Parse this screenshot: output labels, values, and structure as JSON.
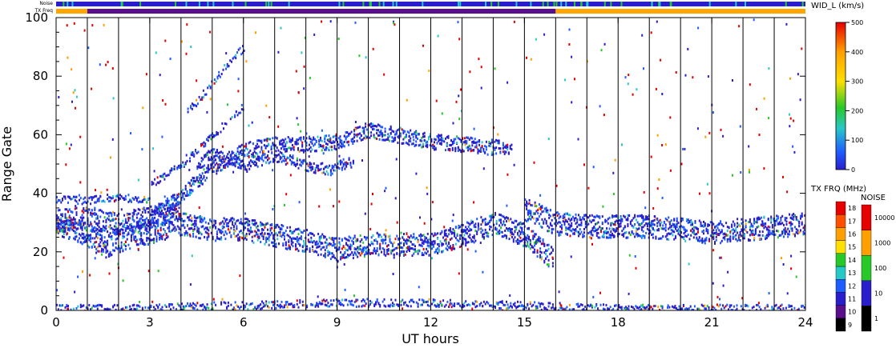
{
  "chart_data": {
    "type": "heatmap",
    "xlabel": "UT hours",
    "ylabel": "Range Gate",
    "xlim": [
      0,
      24
    ],
    "ylim": [
      0,
      100
    ],
    "x_ticks": [
      "0",
      "3",
      "6",
      "9",
      "12",
      "15",
      "18",
      "21",
      "24"
    ],
    "y_ticks": [
      "0",
      "20",
      "40",
      "60",
      "80",
      "100"
    ],
    "scan_boundaries_ut": [
      0.0,
      1.0,
      2.0,
      3.0,
      4.0,
      5.0,
      6.0,
      7.0,
      8.0,
      9.0,
      10.0,
      11.0,
      12.0,
      13.0,
      14.0,
      15.0,
      16.0,
      17.0,
      18.0,
      19.0,
      20.0,
      21.0,
      22.0,
      23.0
    ],
    "top_bars": {
      "noise_label": "Noise",
      "txfreq_label": "TX Freq",
      "txfreq_segments": [
        {
          "start": 0,
          "end": 1,
          "color": "#ffa500"
        },
        {
          "start": 1,
          "end": 16,
          "color": "#5a0f8c"
        },
        {
          "start": 16,
          "end": 24,
          "color": "#ffa500"
        }
      ]
    },
    "bands": [
      {
        "name": "",
        "points": [
          [
            0,
            30
          ],
          [
            1,
            26
          ],
          [
            1.5,
            22
          ],
          [
            2.5,
            26
          ],
          [
            3,
            27
          ],
          [
            4,
            30
          ],
          [
            5,
            28
          ],
          [
            6,
            28
          ],
          [
            7,
            26
          ],
          [
            8,
            24
          ],
          [
            9,
            21
          ],
          [
            10,
            23
          ],
          [
            11,
            23
          ],
          [
            12,
            23
          ],
          [
            13,
            26
          ],
          [
            14,
            30
          ],
          [
            15,
            26
          ],
          [
            15.9,
            18
          ]
        ],
        "width": 6
      },
      {
        "name": "",
        "points": [
          [
            0,
            31
          ],
          [
            1,
            32
          ],
          [
            2,
            30
          ],
          [
            3,
            32
          ],
          [
            4,
            35
          ]
        ],
        "width": 6
      },
      {
        "name": "",
        "points": [
          [
            15,
            35
          ],
          [
            16,
            30
          ],
          [
            17,
            29
          ],
          [
            18,
            29
          ],
          [
            19,
            29
          ],
          [
            20,
            28
          ],
          [
            21,
            27
          ],
          [
            22,
            28
          ],
          [
            23,
            29
          ],
          [
            24,
            30
          ]
        ],
        "width": 6
      },
      {
        "name": "",
        "points": [
          [
            0,
            38
          ],
          [
            1,
            38
          ],
          [
            2,
            39
          ],
          [
            3,
            38
          ]
        ],
        "width": 2
      },
      {
        "name": "",
        "points": [
          [
            3,
            32
          ],
          [
            4,
            40
          ],
          [
            5,
            49
          ],
          [
            6,
            55
          ],
          [
            7,
            57
          ],
          [
            8,
            57
          ],
          [
            9,
            58
          ],
          [
            10,
            62
          ],
          [
            11,
            60
          ],
          [
            12,
            58
          ],
          [
            13,
            57
          ],
          [
            14,
            56
          ],
          [
            14.6,
            56
          ]
        ],
        "width": 4
      },
      {
        "name": "",
        "points": [
          [
            4.5,
            50
          ],
          [
            5,
            54
          ],
          [
            6,
            50
          ],
          [
            7,
            53
          ],
          [
            8,
            50
          ],
          [
            8.8,
            48
          ],
          [
            9.5,
            52
          ]
        ],
        "width": 3
      },
      {
        "name": "",
        "points": [
          [
            3,
            43
          ],
          [
            4,
            50
          ],
          [
            5,
            60
          ],
          [
            6,
            70
          ]
        ],
        "width": 2
      },
      {
        "name": "",
        "points": [
          [
            4.2,
            68
          ],
          [
            5,
            78
          ],
          [
            5.6,
            86
          ],
          [
            6,
            90
          ]
        ],
        "width": 2
      },
      {
        "name": "",
        "points": [
          [
            0,
            1
          ],
          [
            3,
            1
          ],
          [
            5,
            2
          ],
          [
            6,
            2
          ],
          [
            9,
            3
          ],
          [
            12,
            3
          ],
          [
            15,
            2
          ],
          [
            18,
            1
          ],
          [
            21,
            1
          ],
          [
            24,
            1
          ]
        ],
        "width": 2
      }
    ],
    "width_colorbar": {
      "label": "WID_L (km/s)",
      "ticks": [
        "0",
        "100",
        "200",
        "300",
        "400",
        "500"
      ],
      "min": 0,
      "max": 500
    },
    "txfreq_colorbar": {
      "label": "TX FRQ (MHz)",
      "ticks": [
        "9",
        "10",
        "11",
        "12",
        "13",
        "14",
        "15",
        "16",
        "17",
        "18"
      ],
      "colors": [
        "#000000",
        "#5a0f8c",
        "#2a1ecc",
        "#1f5cff",
        "#27c8c8",
        "#28c828",
        "#ffe000",
        "#ffa000",
        "#ff5000",
        "#e60000"
      ]
    },
    "noise_colorbar": {
      "label": "NOISE",
      "ticks": [
        "1",
        "10",
        "100",
        "1000",
        "10000"
      ],
      "colors": [
        "#000000",
        "#2a1ecc",
        "#28c828",
        "#ffa000",
        "#e60000"
      ]
    },
    "palette": [
      "#2a1ecc",
      "#1f5cff",
      "#27c8c8",
      "#28c828",
      "#ffe000",
      "#ffa000",
      "#e60000"
    ]
  }
}
